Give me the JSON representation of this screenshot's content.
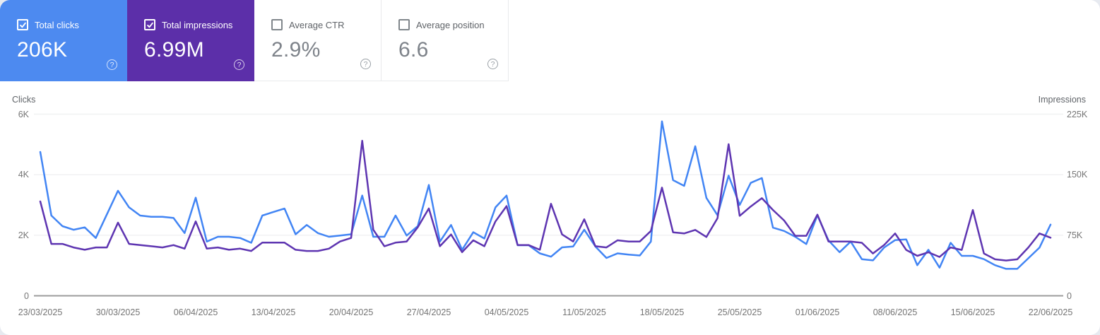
{
  "cards": [
    {
      "label": "Total clicks",
      "value": "206K",
      "checked": true,
      "bg": "#4d8af0"
    },
    {
      "label": "Total impressions",
      "value": "6.99M",
      "checked": true,
      "bg": "#5c2fa9"
    },
    {
      "label": "Average CTR",
      "value": "2.9%",
      "checked": false
    },
    {
      "label": "Average position",
      "value": "6.6",
      "checked": false
    }
  ],
  "icons": {
    "help": "?"
  },
  "chart_data": {
    "type": "line",
    "x_labels": [
      "23/03/2025",
      "30/03/2025",
      "06/04/2025",
      "13/04/2025",
      "20/04/2025",
      "27/04/2025",
      "04/05/2025",
      "11/05/2025",
      "18/05/2025",
      "25/05/2025",
      "01/06/2025",
      "08/06/2025",
      "15/06/2025",
      "22/06/2025"
    ],
    "left_axis": {
      "title": "Clicks",
      "ticks": [
        "6K",
        "4K",
        "2K",
        "0"
      ],
      "max": 6000
    },
    "right_axis": {
      "title": "Impressions",
      "ticks": [
        "225K",
        "150K",
        "75K",
        "0"
      ],
      "max": 225000
    },
    "grid": true,
    "legend_position": "cards-top",
    "series": [
      {
        "name": "Total clicks",
        "axis": "left",
        "color": "#4285f4",
        "values": [
          4750,
          2650,
          2300,
          2180,
          2260,
          1910,
          2690,
          3470,
          2920,
          2650,
          2610,
          2610,
          2570,
          2070,
          3240,
          1790,
          1950,
          1950,
          1910,
          1750,
          2650,
          2770,
          2880,
          2030,
          2340,
          2070,
          1950,
          1990,
          2030,
          3310,
          1950,
          1950,
          2650,
          1990,
          2300,
          3660,
          1790,
          2340,
          1520,
          2100,
          1890,
          2920,
          3310,
          1670,
          1670,
          1400,
          1290,
          1600,
          1630,
          2180,
          1630,
          1250,
          1400,
          1360,
          1330,
          1790,
          5760,
          3820,
          3630,
          4940,
          3230,
          2660,
          3970,
          3000,
          3730,
          3890,
          2250,
          2140,
          1950,
          1710,
          2660,
          1830,
          1440,
          1790,
          1210,
          1170,
          1590,
          1840,
          1860,
          1010,
          1520,
          930,
          1750,
          1320,
          1320,
          1210,
          1010,
          890,
          890,
          1240,
          1590,
          2350
        ]
      },
      {
        "name": "Total impressions",
        "axis": "right",
        "color": "#5e35b1",
        "values": [
          116900,
          64300,
          64300,
          59900,
          57000,
          59900,
          59900,
          90600,
          64300,
          62800,
          61400,
          59900,
          62800,
          58400,
          92100,
          58400,
          59900,
          57000,
          58400,
          55500,
          65800,
          65800,
          65800,
          57000,
          55500,
          55500,
          58400,
          67200,
          71600,
          192100,
          81800,
          61400,
          65800,
          67200,
          84800,
          108200,
          61400,
          76000,
          54000,
          68700,
          61400,
          92100,
          111100,
          62800,
          62800,
          57000,
          114000,
          76000,
          67200,
          94700,
          61400,
          59900,
          68700,
          67200,
          67200,
          80300,
          134000,
          78600,
          77200,
          81600,
          72800,
          96100,
          187800,
          99000,
          110700,
          120900,
          106300,
          93200,
          74300,
          74300,
          100500,
          67200,
          67200,
          67200,
          65700,
          52400,
          62800,
          77200,
          56800,
          49500,
          53900,
          48100,
          59900,
          56800,
          106300,
          52400,
          45200,
          43700,
          45200,
          59900,
          77200,
          72000
        ]
      }
    ]
  }
}
